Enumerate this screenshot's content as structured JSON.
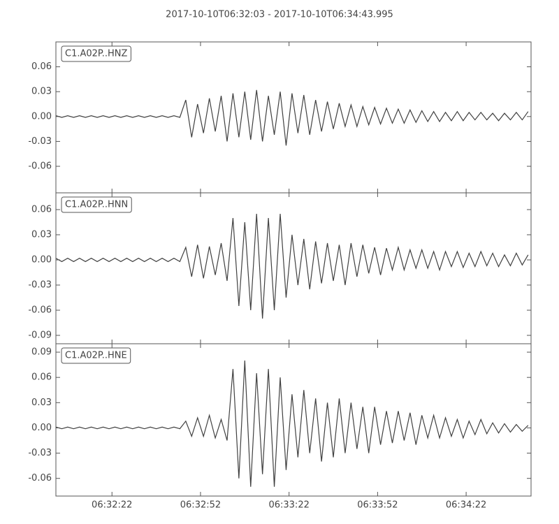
{
  "chart_data": [
    {
      "type": "line",
      "title": "2017-10-10T06:32:03  -  2017-10-10T06:34:43.995",
      "x": [
        23523,
        23525,
        23527,
        23529,
        23531,
        23533,
        23535,
        23537,
        23539,
        23541,
        23543,
        23545,
        23547,
        23549,
        23551,
        23553,
        23555,
        23557,
        23559,
        23561,
        23563,
        23565,
        23567,
        23569,
        23571,
        23573,
        23575,
        23577,
        23579,
        23581,
        23583,
        23585,
        23587,
        23589,
        23591,
        23593,
        23595,
        23597,
        23599,
        23601,
        23603,
        23605,
        23607,
        23609,
        23611,
        23613,
        23615,
        23617,
        23619,
        23621,
        23623,
        23625,
        23627,
        23629,
        23631,
        23633,
        23635,
        23637,
        23639,
        23641,
        23643,
        23645,
        23647,
        23649,
        23651,
        23653,
        23655,
        23657,
        23659,
        23661,
        23663,
        23665,
        23667,
        23669,
        23671,
        23673,
        23675,
        23677,
        23679,
        23681,
        23683
      ],
      "series": [
        {
          "name": "C1.A02P..HNZ",
          "color": "#404040",
          "values": [
            0.001,
            -0.001,
            0.001,
            -0.001,
            0.001,
            -0.001,
            0.001,
            -0.001,
            0.001,
            -0.001,
            0.001,
            -0.001,
            0.001,
            -0.001,
            0.001,
            -0.001,
            0.001,
            -0.001,
            0.001,
            -0.001,
            0.001,
            -0.001,
            0.02,
            -0.025,
            0.015,
            -0.02,
            0.022,
            -0.018,
            0.025,
            -0.03,
            0.028,
            -0.025,
            0.03,
            -0.028,
            0.032,
            -0.03,
            0.025,
            -0.022,
            0.03,
            -0.035,
            0.028,
            -0.02,
            0.026,
            -0.022,
            0.02,
            -0.018,
            0.018,
            -0.015,
            0.016,
            -0.012,
            0.014,
            -0.012,
            0.012,
            -0.01,
            0.011,
            -0.009,
            0.01,
            -0.008,
            0.009,
            -0.008,
            0.008,
            -0.007,
            0.007,
            -0.006,
            0.006,
            -0.006,
            0.005,
            -0.005,
            0.006,
            -0.005,
            0.005,
            -0.004,
            0.005,
            -0.004,
            0.004,
            -0.005,
            0.004,
            -0.004,
            0.005,
            -0.004,
            0.006
          ]
        }
      ],
      "xlim": [
        23523,
        23683.995
      ],
      "ylim": [
        -0.092,
        0.09
      ],
      "yticks": [
        0.06,
        0.03,
        {
          "value": 0,
          "label": "0.00"
        },
        -0.03,
        -0.06
      ]
    },
    {
      "type": "line",
      "x": [
        23523,
        23525,
        23527,
        23529,
        23531,
        23533,
        23535,
        23537,
        23539,
        23541,
        23543,
        23545,
        23547,
        23549,
        23551,
        23553,
        23555,
        23557,
        23559,
        23561,
        23563,
        23565,
        23567,
        23569,
        23571,
        23573,
        23575,
        23577,
        23579,
        23581,
        23583,
        23585,
        23587,
        23589,
        23591,
        23593,
        23595,
        23597,
        23599,
        23601,
        23603,
        23605,
        23607,
        23609,
        23611,
        23613,
        23615,
        23617,
        23619,
        23621,
        23623,
        23625,
        23627,
        23629,
        23631,
        23633,
        23635,
        23637,
        23639,
        23641,
        23643,
        23645,
        23647,
        23649,
        23651,
        23653,
        23655,
        23657,
        23659,
        23661,
        23663,
        23665,
        23667,
        23669,
        23671,
        23673,
        23675,
        23677,
        23679,
        23681,
        23683
      ],
      "series": [
        {
          "name": "C1.A02P..HNN",
          "color": "#404040",
          "values": [
            0.002,
            -0.002,
            0.002,
            -0.002,
            0.002,
            -0.002,
            0.002,
            -0.002,
            0.002,
            -0.002,
            0.002,
            -0.002,
            0.002,
            -0.002,
            0.002,
            -0.002,
            0.002,
            -0.002,
            0.002,
            -0.002,
            0.002,
            -0.002,
            0.015,
            -0.02,
            0.018,
            -0.022,
            0.016,
            -0.018,
            0.02,
            -0.025,
            0.05,
            -0.055,
            0.045,
            -0.06,
            0.055,
            -0.07,
            0.05,
            -0.06,
            0.055,
            -0.045,
            0.03,
            -0.03,
            0.025,
            -0.035,
            0.022,
            -0.028,
            0.02,
            -0.025,
            0.018,
            -0.03,
            0.02,
            -0.02,
            0.018,
            -0.016,
            0.015,
            -0.018,
            0.014,
            -0.012,
            0.015,
            -0.012,
            0.012,
            -0.01,
            0.012,
            -0.01,
            0.01,
            -0.012,
            0.01,
            -0.008,
            0.01,
            -0.009,
            0.008,
            -0.008,
            0.01,
            -0.007,
            0.008,
            -0.008,
            0.006,
            -0.007,
            0.008,
            -0.006,
            0.006
          ]
        }
      ],
      "xlim": [
        23523,
        23683.995
      ],
      "ylim": [
        -0.1,
        0.08
      ],
      "yticks": [
        0.06,
        0.03,
        {
          "value": 0,
          "label": "0.00"
        },
        -0.03,
        -0.06,
        -0.09
      ]
    },
    {
      "type": "line",
      "x": [
        23523,
        23525,
        23527,
        23529,
        23531,
        23533,
        23535,
        23537,
        23539,
        23541,
        23543,
        23545,
        23547,
        23549,
        23551,
        23553,
        23555,
        23557,
        23559,
        23561,
        23563,
        23565,
        23567,
        23569,
        23571,
        23573,
        23575,
        23577,
        23579,
        23581,
        23583,
        23585,
        23587,
        23589,
        23591,
        23593,
        23595,
        23597,
        23599,
        23601,
        23603,
        23605,
        23607,
        23609,
        23611,
        23613,
        23615,
        23617,
        23619,
        23621,
        23623,
        23625,
        23627,
        23629,
        23631,
        23633,
        23635,
        23637,
        23639,
        23641,
        23643,
        23645,
        23647,
        23649,
        23651,
        23653,
        23655,
        23657,
        23659,
        23661,
        23663,
        23665,
        23667,
        23669,
        23671,
        23673,
        23675,
        23677,
        23679,
        23681,
        23683
      ],
      "series": [
        {
          "name": "C1.A02P..HNE",
          "color": "#404040",
          "values": [
            0.001,
            -0.001,
            0.001,
            -0.001,
            0.001,
            -0.001,
            0.001,
            -0.001,
            0.001,
            -0.001,
            0.001,
            -0.001,
            0.001,
            -0.001,
            0.001,
            -0.001,
            0.001,
            -0.001,
            0.001,
            -0.001,
            0.001,
            -0.001,
            0.008,
            -0.01,
            0.012,
            -0.01,
            0.015,
            -0.012,
            0.01,
            -0.015,
            0.07,
            -0.06,
            0.08,
            -0.07,
            0.065,
            -0.055,
            0.07,
            -0.07,
            0.06,
            -0.05,
            0.04,
            -0.035,
            0.045,
            -0.03,
            0.035,
            -0.04,
            0.03,
            -0.035,
            0.035,
            -0.03,
            0.03,
            -0.025,
            0.025,
            -0.03,
            0.025,
            -0.02,
            0.02,
            -0.018,
            0.02,
            -0.015,
            0.018,
            -0.02,
            0.015,
            -0.012,
            0.015,
            -0.012,
            0.012,
            -0.01,
            0.01,
            -0.012,
            0.008,
            -0.008,
            0.01,
            -0.007,
            0.006,
            -0.006,
            0.005,
            -0.005,
            0.004,
            -0.004,
            0.003
          ]
        }
      ],
      "xlim": [
        23523,
        23683.995
      ],
      "ylim": [
        -0.081,
        0.1
      ],
      "yticks": [
        0.09,
        0.06,
        0.03,
        {
          "value": 0,
          "label": "0.00"
        },
        -0.03,
        -0.06
      ],
      "xticks": [
        {
          "value": 23542,
          "label": "06:32:22"
        },
        {
          "value": 23572,
          "label": "06:32:52"
        },
        {
          "value": 23602,
          "label": "06:33:22"
        },
        {
          "value": 23632,
          "label": "06:33:52"
        },
        {
          "value": 23662,
          "label": "06:34:22"
        }
      ]
    }
  ]
}
